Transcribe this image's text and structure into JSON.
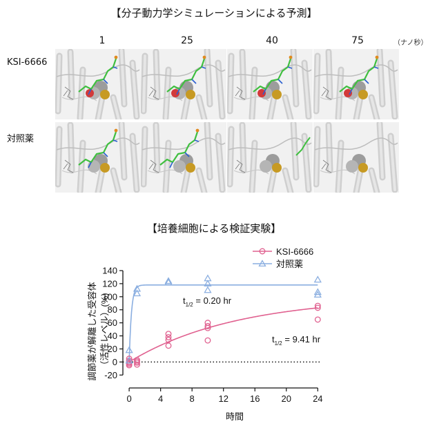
{
  "simulation": {
    "title": "【分子動力学シミュレーションによる予測】",
    "time_points": [
      "1",
      "25",
      "40",
      "75"
    ],
    "time_unit": "（ナノ秒）",
    "rows": [
      {
        "label": "KSI-6666",
        "ligand_visible": [
          true,
          true,
          true,
          true
        ]
      },
      {
        "label": "対照薬",
        "ligand_visible": [
          true,
          true,
          false,
          false
        ]
      }
    ]
  },
  "experiment": {
    "title": "【培養細胞による検証実験】"
  },
  "chart_data": {
    "type": "scatter",
    "xlabel": "時間",
    "ylabel_line1": "調節薬が解離した受容体",
    "ylabel_line2": "（活性レベル）(%)",
    "xticks": [
      0,
      4,
      8,
      12,
      16,
      20,
      24
    ],
    "yticks": [
      -20,
      0,
      20,
      40,
      60,
      80,
      100,
      120,
      140
    ],
    "xlim": [
      -0.8,
      24.5
    ],
    "ylim": [
      -25,
      140
    ],
    "zero_line": "dotted",
    "legend_position": "top-right",
    "series": [
      {
        "name": "KSI-6666",
        "color": "#e0608f",
        "marker": "circle",
        "points": [
          [
            0,
            -5
          ],
          [
            0,
            -3
          ],
          [
            0,
            0
          ],
          [
            0,
            2
          ],
          [
            0,
            5
          ],
          [
            0,
            -1
          ],
          [
            1,
            -4
          ],
          [
            1,
            -1
          ],
          [
            1,
            1
          ],
          [
            1,
            3
          ],
          [
            5,
            25
          ],
          [
            5,
            34
          ],
          [
            5,
            38
          ],
          [
            5,
            43
          ],
          [
            10,
            33
          ],
          [
            10,
            52
          ],
          [
            10,
            55
          ],
          [
            10,
            60
          ],
          [
            24,
            65
          ],
          [
            24,
            83
          ],
          [
            24,
            86
          ]
        ],
        "fit": {
          "model": "one-phase association",
          "half_life_hr": 9.41,
          "plateau": 100
        },
        "annotation": {
          "prefix": "t",
          "sub": "1/2",
          "text": " = 9.41 hr"
        }
      },
      {
        "name": "対照薬",
        "color": "#8aaee0",
        "marker": "triangle",
        "points": [
          [
            0,
            2
          ],
          [
            0,
            18
          ],
          [
            1,
            105
          ],
          [
            1,
            112
          ],
          [
            5,
            122
          ],
          [
            5,
            124
          ],
          [
            10,
            110
          ],
          [
            10,
            120
          ],
          [
            10,
            128
          ],
          [
            24,
            103
          ],
          [
            24,
            107
          ],
          [
            24,
            126
          ]
        ],
        "fit": {
          "model": "one-phase association",
          "half_life_hr": 0.2,
          "plateau": 118
        },
        "annotation": {
          "prefix": "t",
          "sub": "1/2",
          "text": " = 0.20 hr"
        }
      }
    ]
  }
}
